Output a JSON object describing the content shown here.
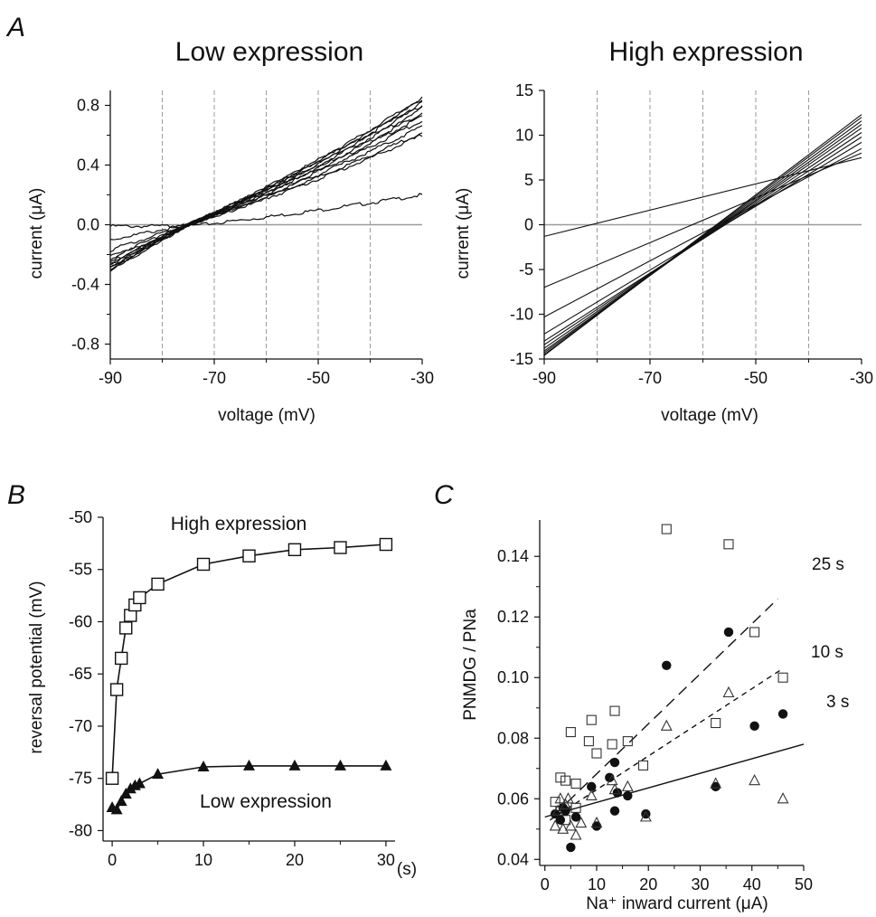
{
  "figure": {
    "panel_letters": [
      "A",
      "B",
      "C"
    ]
  },
  "chart_data": [
    {
      "id": "A-low",
      "type": "line",
      "title": "Low expression",
      "xlabel": "voltage (mV)",
      "ylabel": "current (μA)",
      "xlim": [
        -90,
        -30
      ],
      "ylim": [
        -0.9,
        0.9
      ],
      "xticks": [
        -90,
        -70,
        -50,
        -30
      ],
      "xtick_labels": [
        "-90",
        "-70",
        "-50",
        "-30"
      ],
      "yticks": [
        -0.8,
        -0.4,
        0.0,
        0.4,
        0.8
      ],
      "ytick_labels": [
        "-0.8",
        "-0.4",
        "0.0",
        "0.4",
        "0.8"
      ],
      "vertical_grid": [
        -80,
        -70,
        -60,
        -50,
        -40
      ],
      "zero_line": true,
      "series": [
        {
          "x": [
            -90,
            -75,
            -30
          ],
          "y": [
            -0.01,
            -0.01,
            0.2
          ]
        },
        {
          "x": [
            -90,
            -75,
            -30
          ],
          "y": [
            -0.1,
            0.0,
            0.6
          ]
        },
        {
          "x": [
            -90,
            -75,
            -30
          ],
          "y": [
            -0.17,
            0.0,
            0.62
          ]
        },
        {
          "x": [
            -90,
            -75,
            -30
          ],
          "y": [
            -0.21,
            0.0,
            0.66
          ]
        },
        {
          "x": [
            -90,
            -75,
            -30
          ],
          "y": [
            -0.23,
            0.0,
            0.7
          ]
        },
        {
          "x": [
            -90,
            -75,
            -30
          ],
          "y": [
            -0.25,
            0.0,
            0.73
          ]
        },
        {
          "x": [
            -90,
            -75,
            -30
          ],
          "y": [
            -0.26,
            0.0,
            0.75
          ]
        },
        {
          "x": [
            -90,
            -75,
            -30
          ],
          "y": [
            -0.27,
            0.0,
            0.78
          ]
        },
        {
          "x": [
            -90,
            -75,
            -30
          ],
          "y": [
            -0.28,
            0.0,
            0.8
          ]
        },
        {
          "x": [
            -90,
            -75,
            -30
          ],
          "y": [
            -0.29,
            0.0,
            0.82
          ]
        },
        {
          "x": [
            -90,
            -75,
            -30
          ],
          "y": [
            -0.3,
            0.0,
            0.84
          ]
        },
        {
          "x": [
            -90,
            -75,
            -30
          ],
          "y": [
            -0.31,
            0.0,
            0.85
          ]
        }
      ]
    },
    {
      "id": "A-high",
      "type": "line",
      "title": "High expression",
      "xlabel": "voltage (mV)",
      "ylabel": "current (μA)",
      "xlim": [
        -90,
        -30
      ],
      "ylim": [
        -15,
        15
      ],
      "xticks": [
        -90,
        -70,
        -50,
        -30
      ],
      "xtick_labels": [
        "-90",
        "-70",
        "-50",
        "-30"
      ],
      "yticks": [
        -15,
        -10,
        -5,
        0,
        5,
        10,
        15
      ],
      "ytick_labels": [
        "-15",
        "-10",
        "-5",
        "0",
        "5",
        "10",
        "15"
      ],
      "vertical_grid": [
        -80,
        -70,
        -60,
        -50,
        -40
      ],
      "zero_line": true,
      "series": [
        {
          "x": [
            -90,
            -30
          ],
          "y": [
            -1.3,
            7.5
          ]
        },
        {
          "x": [
            -90,
            -30
          ],
          "y": [
            -7.0,
            8.0
          ]
        },
        {
          "x": [
            -90,
            -30
          ],
          "y": [
            -10.3,
            8.5
          ]
        },
        {
          "x": [
            -90,
            -30
          ],
          "y": [
            -12.2,
            9.2
          ]
        },
        {
          "x": [
            -90,
            -30
          ],
          "y": [
            -13.0,
            9.8
          ]
        },
        {
          "x": [
            -90,
            -30
          ],
          "y": [
            -13.4,
            10.3
          ]
        },
        {
          "x": [
            -90,
            -30
          ],
          "y": [
            -13.8,
            10.8
          ]
        },
        {
          "x": [
            -90,
            -30
          ],
          "y": [
            -14.1,
            11.2
          ]
        },
        {
          "x": [
            -90,
            -30
          ],
          "y": [
            -14.3,
            11.6
          ]
        },
        {
          "x": [
            -90,
            -30
          ],
          "y": [
            -14.5,
            12.0
          ]
        },
        {
          "x": [
            -90,
            -30
          ],
          "y": [
            -14.6,
            12.3
          ]
        }
      ]
    },
    {
      "id": "B",
      "type": "line",
      "xlabel": "(s)",
      "ylabel": "reversal potential (mV)",
      "xlim": [
        -1,
        31
      ],
      "ylim": [
        -81,
        -50
      ],
      "xticks": [
        0,
        10,
        20,
        30
      ],
      "xtick_labels": [
        "0",
        "10",
        "20",
        "30"
      ],
      "yticks": [
        -80,
        -75,
        -70,
        -65,
        -60,
        -55,
        -50
      ],
      "ytick_labels": [
        "-80",
        "-75",
        "-70",
        "-65",
        "-60",
        "-55",
        "-50"
      ],
      "annotations": [
        "High expression",
        "Low expression"
      ],
      "series": [
        {
          "marker": "open-square",
          "x": [
            0,
            0.5,
            1,
            1.5,
            2,
            2.5,
            3,
            5,
            10,
            15,
            20,
            25,
            30
          ],
          "y": [
            -75.0,
            -66.5,
            -63.5,
            -60.6,
            -59.4,
            -58.4,
            -57.7,
            -56.4,
            -54.5,
            -53.7,
            -53.1,
            -52.9,
            -52.6
          ]
        },
        {
          "marker": "filled-triangle",
          "x": [
            0,
            0.5,
            1,
            1.5,
            2,
            2.5,
            3,
            5,
            10,
            15,
            20,
            25,
            30
          ],
          "y": [
            -77.8,
            -78.0,
            -77.2,
            -76.5,
            -76.0,
            -75.7,
            -75.5,
            -74.6,
            -73.9,
            -73.8,
            -73.8,
            -73.8,
            -73.8
          ]
        }
      ]
    },
    {
      "id": "C",
      "type": "scatter",
      "xlabel": "Na⁺ inward current (μA)",
      "ylabel": "PNMDG / PNa",
      "xlim": [
        -1,
        50
      ],
      "ylim": [
        0.038,
        0.152
      ],
      "xticks": [
        0,
        10,
        20,
        30,
        40,
        50
      ],
      "xtick_labels": [
        "0",
        "10",
        "20",
        "30",
        "40",
        "50"
      ],
      "yticks": [
        0.04,
        0.06,
        0.08,
        0.1,
        0.12,
        0.14
      ],
      "ytick_labels": [
        "0.04",
        "0.06",
        "0.08",
        "0.10",
        "0.12",
        "0.14"
      ],
      "fit_lines": [
        {
          "label": "25 s",
          "style": "long-dash",
          "x": [
            2,
            45
          ],
          "y": [
            0.055,
            0.126
          ]
        },
        {
          "label": "10 s",
          "style": "short-dash",
          "x": [
            1,
            46
          ],
          "y": [
            0.053,
            0.103
          ]
        },
        {
          "label": "3 s",
          "style": "solid",
          "x": [
            0,
            50
          ],
          "y": [
            0.054,
            0.078
          ]
        }
      ],
      "series": [
        {
          "marker": "open-square",
          "points": [
            [
              2,
              0.059
            ],
            [
              3,
              0.067
            ],
            [
              4,
              0.066
            ],
            [
              5,
              0.082
            ],
            [
              6,
              0.065
            ],
            [
              8.5,
              0.079
            ],
            [
              9,
              0.086
            ],
            [
              10,
              0.075
            ],
            [
              13,
              0.078
            ],
            [
              13.5,
              0.089
            ],
            [
              16,
              0.079
            ],
            [
              19,
              0.071
            ],
            [
              23.5,
              0.149
            ],
            [
              33,
              0.085
            ],
            [
              35.5,
              0.144
            ],
            [
              40.5,
              0.115
            ],
            [
              46,
              0.1
            ],
            [
              3,
              0.056
            ],
            [
              4,
              0.053
            ],
            [
              6,
              0.057
            ]
          ]
        },
        {
          "marker": "filled-circle",
          "points": [
            [
              2,
              0.055
            ],
            [
              3,
              0.053
            ],
            [
              3.5,
              0.057
            ],
            [
              4,
              0.056
            ],
            [
              5,
              0.044
            ],
            [
              6,
              0.054
            ],
            [
              9,
              0.064
            ],
            [
              10,
              0.051
            ],
            [
              12.5,
              0.067
            ],
            [
              13.5,
              0.072
            ],
            [
              13.5,
              0.056
            ],
            [
              14,
              0.062
            ],
            [
              16,
              0.061
            ],
            [
              19.5,
              0.055
            ],
            [
              23.5,
              0.104
            ],
            [
              33,
              0.064
            ],
            [
              35.5,
              0.115
            ],
            [
              40.5,
              0.084
            ],
            [
              46,
              0.088
            ]
          ]
        },
        {
          "marker": "open-triangle",
          "points": [
            [
              2,
              0.051
            ],
            [
              2.5,
              0.056
            ],
            [
              3,
              0.06
            ],
            [
              3.5,
              0.05
            ],
            [
              4,
              0.058
            ],
            [
              4.5,
              0.06
            ],
            [
              5,
              0.051
            ],
            [
              6,
              0.048
            ],
            [
              7,
              0.052
            ],
            [
              9,
              0.061
            ],
            [
              10,
              0.052
            ],
            [
              13,
              0.066
            ],
            [
              13.5,
              0.063
            ],
            [
              16,
              0.064
            ],
            [
              19.5,
              0.054
            ],
            [
              23.5,
              0.084
            ],
            [
              33,
              0.065
            ],
            [
              35.5,
              0.095
            ],
            [
              40.5,
              0.066
            ],
            [
              46,
              0.06
            ]
          ]
        }
      ]
    }
  ]
}
